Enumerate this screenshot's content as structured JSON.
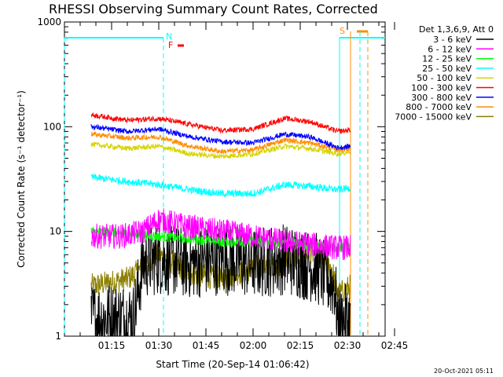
{
  "chart_data": {
    "type": "line",
    "title": "RHESSI Observing Summary Count Rates, Corrected",
    "xlabel": "Start Time (20-Sep-14 01:06:42)",
    "ylabel": "Corrected Count Rate (s⁻¹ detector⁻¹)",
    "yscale": "log",
    "ylim": [
      1,
      1000
    ],
    "xlim_minutes": [
      0,
      102
    ],
    "y_ticks": [
      "1",
      "10",
      "100",
      "1000"
    ],
    "x_ticks": [
      "01:15",
      "01:30",
      "01:45",
      "02:00",
      "02:15",
      "02:30",
      "02:45"
    ],
    "x_tick_minutes": [
      15,
      30,
      45,
      60,
      75,
      90,
      105
    ],
    "legend_header": "Det 1,3,6,9, Att 0",
    "legend_placement": "right",
    "footer_date": "20-Oct-2021 05:11",
    "series": [
      {
        "name": "3 - 6 keV",
        "color": "#000000"
      },
      {
        "name": "6 - 12 keV",
        "color": "#ff00ff"
      },
      {
        "name": "12 - 25 keV",
        "color": "#00ff00"
      },
      {
        "name": "25 - 50 keV",
        "color": "#00ffff"
      },
      {
        "name": "50 - 100 keV",
        "color": "#d4d400"
      },
      {
        "name": "100 - 300 keV",
        "color": "#ff0000"
      },
      {
        "name": "300 - 800 keV",
        "color": "#0000ff"
      },
      {
        "name": "800 - 7000 keV",
        "color": "#ff8c00"
      },
      {
        "name": "7000 - 15000 keV",
        "color": "#8b8000"
      }
    ],
    "series_levels": {
      "100 - 300 keV": [
        [
          8.5,
          130
        ],
        [
          20,
          115
        ],
        [
          30,
          120
        ],
        [
          40,
          105
        ],
        [
          50,
          92
        ],
        [
          60,
          95
        ],
        [
          70,
          120
        ],
        [
          78,
          112
        ],
        [
          87,
          90
        ],
        [
          91,
          93
        ]
      ],
      "300 - 800 keV": [
        [
          8.5,
          100
        ],
        [
          20,
          90
        ],
        [
          30,
          95
        ],
        [
          40,
          80
        ],
        [
          50,
          72
        ],
        [
          60,
          70
        ],
        [
          70,
          85
        ],
        [
          78,
          80
        ],
        [
          87,
          63
        ],
        [
          91,
          65
        ]
      ],
      "800 - 7000 keV": [
        [
          8.5,
          85
        ],
        [
          20,
          78
        ],
        [
          30,
          80
        ],
        [
          40,
          65
        ],
        [
          50,
          58
        ],
        [
          60,
          60
        ],
        [
          70,
          75
        ],
        [
          78,
          70
        ],
        [
          87,
          60
        ],
        [
          91,
          62
        ]
      ],
      "50 - 100 keV": [
        [
          8.5,
          68
        ],
        [
          20,
          62
        ],
        [
          30,
          65
        ],
        [
          40,
          55
        ],
        [
          50,
          52
        ],
        [
          60,
          55
        ],
        [
          70,
          65
        ],
        [
          78,
          62
        ],
        [
          87,
          55
        ],
        [
          91,
          58
        ]
      ],
      "25 - 50 keV": [
        [
          8.5,
          33
        ],
        [
          20,
          30
        ],
        [
          30,
          28
        ],
        [
          40,
          25
        ],
        [
          50,
          23
        ],
        [
          60,
          23
        ],
        [
          70,
          28
        ],
        [
          78,
          27
        ],
        [
          87,
          25
        ],
        [
          91,
          26
        ]
      ],
      "6 - 12 keV": [
        [
          8.5,
          9
        ],
        [
          18,
          9
        ],
        [
          25,
          10
        ],
        [
          30,
          13
        ],
        [
          40,
          11
        ],
        [
          50,
          10
        ],
        [
          60,
          9
        ],
        [
          70,
          8
        ],
        [
          78,
          7.5
        ],
        [
          87,
          7
        ],
        [
          91,
          7
        ]
      ],
      "12 - 25 keV": [
        [
          8.5,
          10
        ],
        [
          20,
          9.5
        ],
        [
          30,
          9
        ],
        [
          40,
          8.5
        ],
        [
          50,
          8
        ],
        [
          60,
          8
        ],
        [
          70,
          8
        ],
        [
          78,
          7.5
        ],
        [
          87,
          7
        ],
        [
          91,
          7
        ]
      ],
      "3 - 6 keV": [
        [
          8.5,
          1.5
        ],
        [
          22,
          1.5
        ],
        [
          25,
          5
        ],
        [
          30,
          5.5
        ],
        [
          40,
          5
        ],
        [
          50,
          5.5
        ],
        [
          60,
          5
        ],
        [
          70,
          5.5
        ],
        [
          80,
          4.5
        ],
        [
          86,
          3
        ],
        [
          87,
          1.3
        ],
        [
          91,
          1.5
        ]
      ],
      "7000 - 15000 keV": [
        [
          8.5,
          3
        ],
        [
          20,
          3.5
        ],
        [
          25,
          4.5
        ],
        [
          30,
          6
        ],
        [
          40,
          4
        ],
        [
          50,
          3.5
        ],
        [
          60,
          4.5
        ],
        [
          70,
          5
        ],
        [
          78,
          6.5
        ],
        [
          85,
          4.5
        ],
        [
          87,
          2.5
        ],
        [
          91,
          3
        ]
      ]
    },
    "night_intervals_minutes": [
      [
        0,
        31.5
      ],
      [
        87.5,
        104
      ]
    ],
    "night_label": "N",
    "saa_label": "S",
    "saa_interval_minutes": [
      91,
      105
    ],
    "flare_label": "F",
    "flare_interval_minutes": [
      36,
      38
    ]
  }
}
